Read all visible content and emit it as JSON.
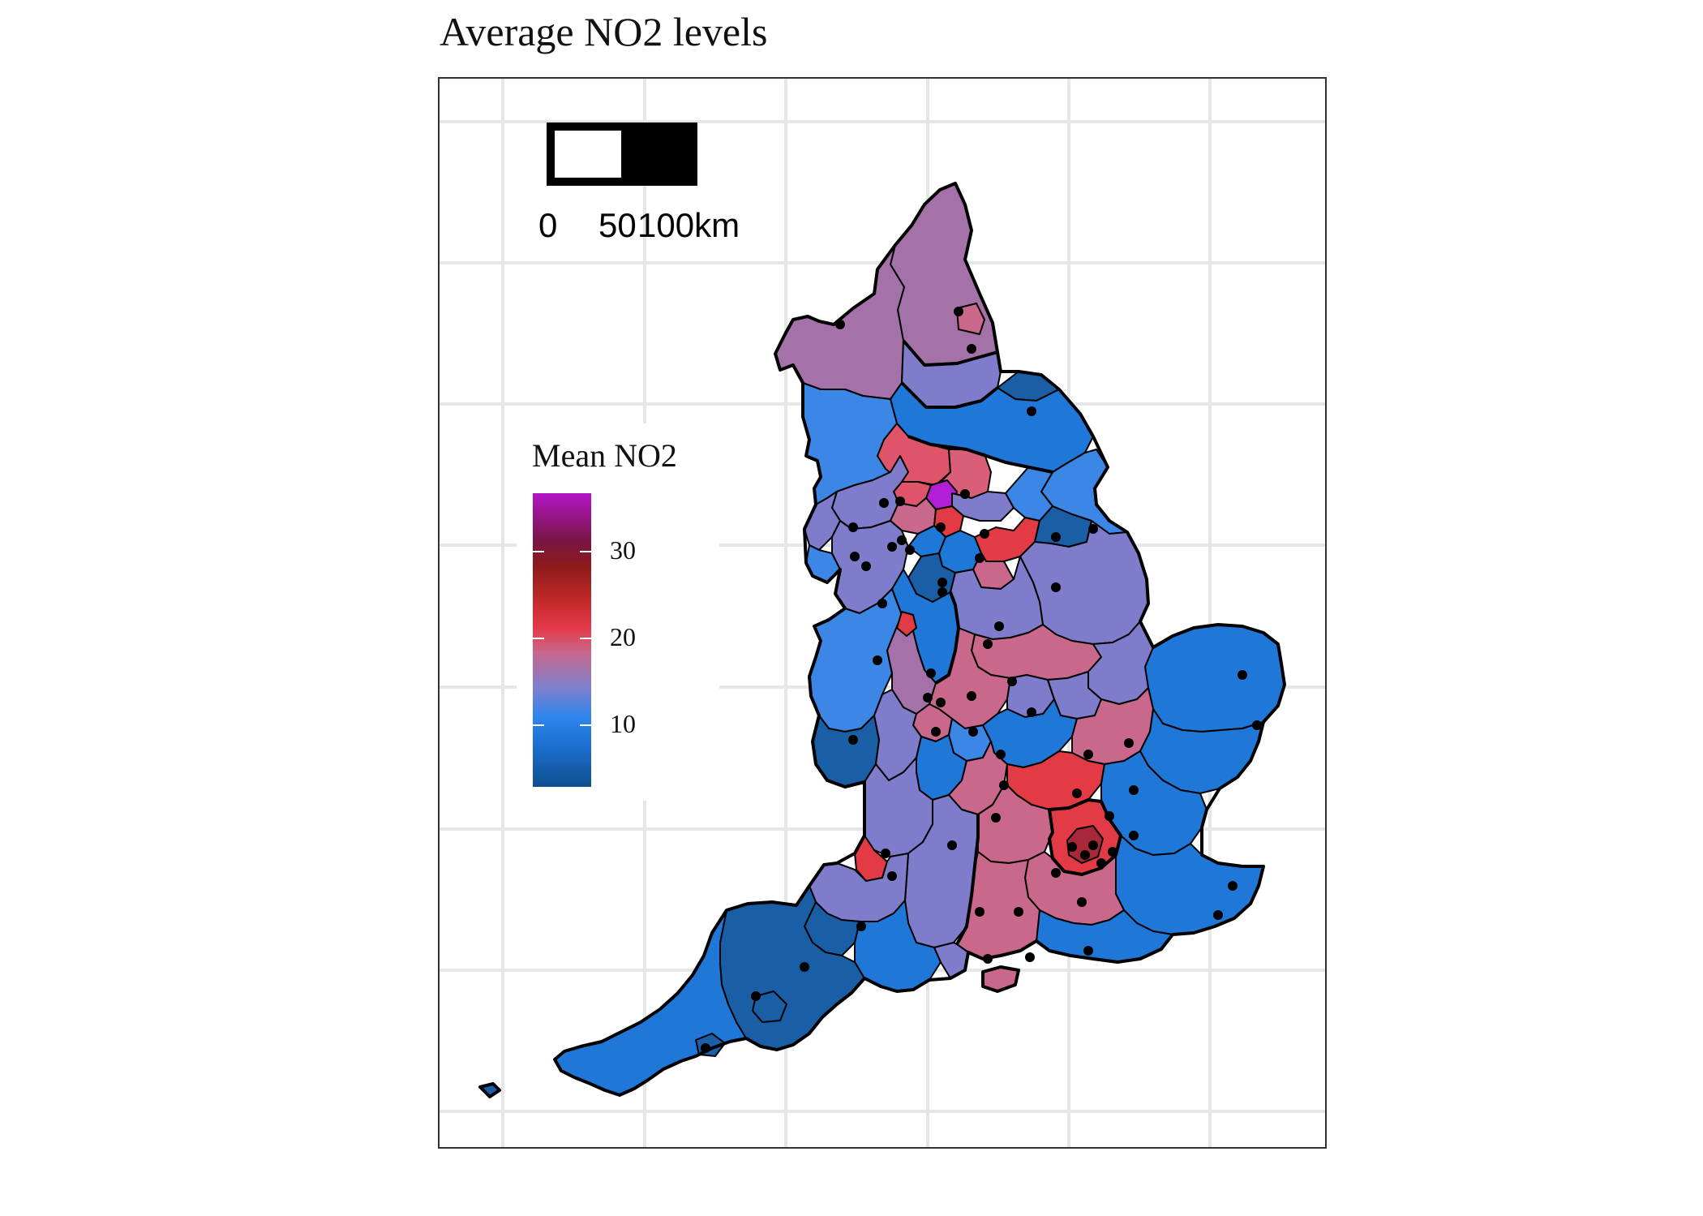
{
  "title": "Average NO2 levels",
  "scale_bar": {
    "labels": [
      "0",
      "50",
      "100km"
    ]
  },
  "legend": {
    "title": "Mean NO2",
    "ticks": [
      {
        "value": 30,
        "label": "30"
      },
      {
        "value": 20,
        "label": "20"
      },
      {
        "value": 10,
        "label": "10"
      }
    ],
    "range": [
      3,
      37
    ],
    "colors": [
      "#0f4f8f",
      "#1b6fcf",
      "#2f86ec",
      "#7a80d0",
      "#c9678c",
      "#e4394a",
      "#c42a2a",
      "#8d1a1a",
      "#7a1545",
      "#b415c8"
    ]
  },
  "colors": {
    "blue_dark": "#1a5ea6",
    "blue": "#1f78d8",
    "blue_light": "#3c86e6",
    "purple": "#7e7ccb",
    "mauve": "#a472a8",
    "pink": "#c9678c",
    "red": "#e33b45",
    "magenta": "#b21ed6",
    "border": "#000000",
    "grid": "#e6e6e6"
  }
}
